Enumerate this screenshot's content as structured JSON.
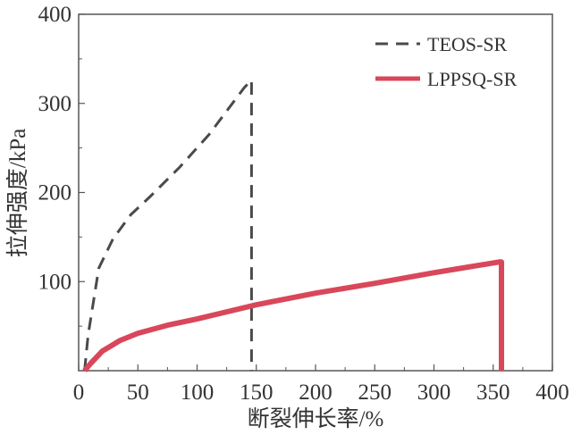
{
  "chart_data": {
    "type": "line",
    "title": "",
    "xlabel": "断裂伸长率/%",
    "ylabel": "拉伸强度/kPa",
    "xlim": [
      0,
      400
    ],
    "ylim": [
      0,
      400
    ],
    "xticks": [
      0,
      50,
      100,
      150,
      200,
      250,
      300,
      350,
      400
    ],
    "yticks": [
      100,
      200,
      300,
      400
    ],
    "ytick_labels_extra": {
      "origin": "0"
    },
    "grid": false,
    "legend_position": "top-right",
    "series": [
      {
        "name": "TEOS-SR",
        "style": "dashed",
        "color": "#4a4a4a",
        "x": [
          5,
          8,
          17,
          29,
          44,
          60,
          85,
          110,
          140,
          146,
          146
        ],
        "y": [
          0,
          40,
          115,
          148,
          175,
          195,
          228,
          265,
          318,
          326,
          0
        ]
      },
      {
        "name": "LPPSQ-SR",
        "style": "solid",
        "color": "#d9475a",
        "x": [
          5,
          10,
          20,
          35,
          50,
          75,
          100,
          150,
          200,
          250,
          300,
          355,
          357,
          357
        ],
        "y": [
          0,
          8,
          22,
          34,
          42,
          51,
          58,
          74,
          87,
          98,
          110,
          122,
          122,
          0
        ]
      }
    ]
  }
}
